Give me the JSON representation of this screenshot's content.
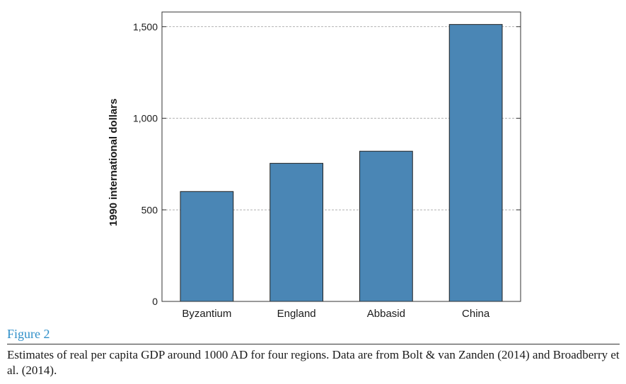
{
  "chart_data": {
    "type": "bar",
    "categories": [
      "Byzantium",
      "England",
      "Abbasid",
      "China"
    ],
    "values": [
      600,
      754,
      820,
      1512
    ],
    "ylabel": "1990 international dollars",
    "ylim": [
      0,
      1580
    ],
    "yticks": [
      0,
      500,
      1000,
      1500
    ],
    "ytick_labels": [
      "0",
      "500",
      "1,000",
      "1,500"
    ],
    "grid": "horizontal dashed at major ticks",
    "bar_color": "#4a86b5",
    "bar_edge_color": "#222222"
  },
  "figure": {
    "label": "Figure 2",
    "label_color": "#2f8fc9",
    "caption": "Estimates of real per capita GDP around 1000 AD for four regions. Data are from Bolt & van Zanden (2014) and Broadberry et al. (2014)."
  }
}
